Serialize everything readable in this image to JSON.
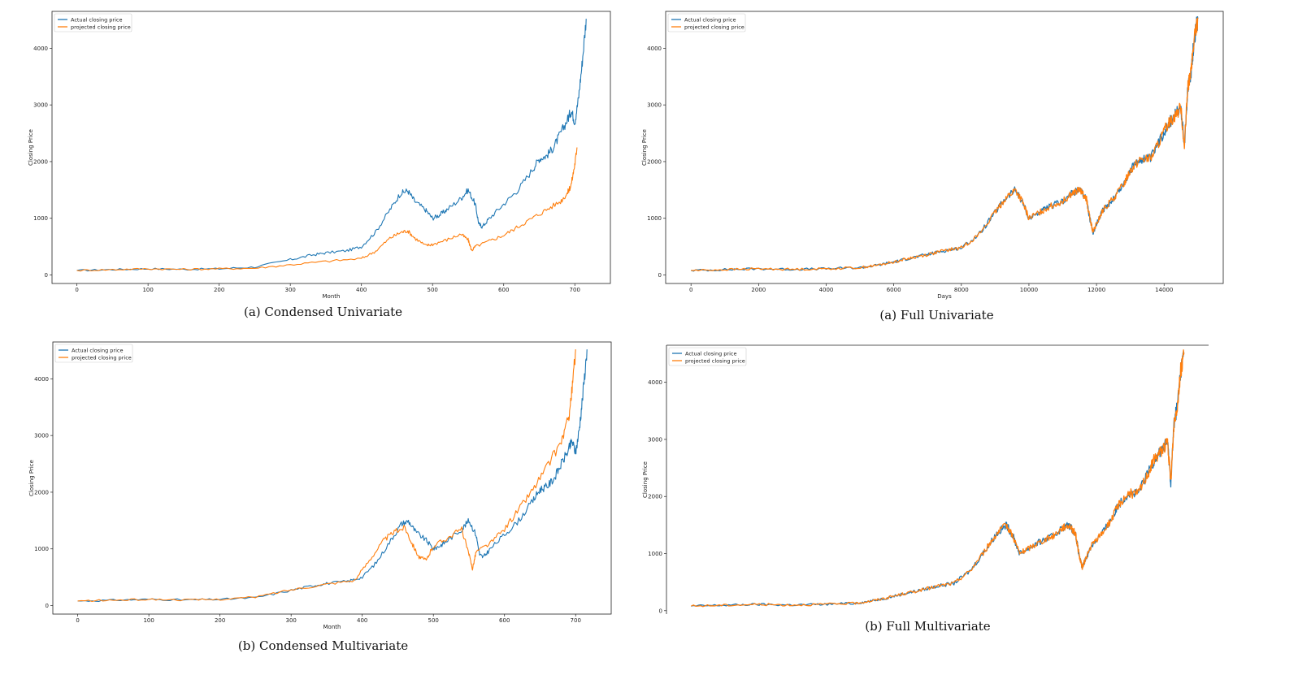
{
  "series_colors": {
    "actual": "#1f77b4",
    "projected": "#ff7f0e"
  },
  "legend": {
    "actual": "Actual closing price",
    "projected": "projected closing price"
  },
  "chart_data": [
    {
      "id": "condensed-univariate",
      "type": "line",
      "caption": "(a) Condensed Univariate",
      "xlabel": "Month",
      "ylabel": "Closing Price",
      "xlim": [
        -35,
        750
      ],
      "ylim": [
        -150,
        4650
      ],
      "xticks": [
        0,
        100,
        200,
        300,
        400,
        500,
        600,
        700
      ],
      "yticks": [
        0,
        1000,
        2000,
        3000,
        4000
      ],
      "legend_position": "top-left",
      "series": [
        {
          "name": "Actual closing price",
          "x": [
            0,
            50,
            100,
            150,
            200,
            250,
            300,
            330,
            350,
            380,
            400,
            420,
            440,
            455,
            465,
            475,
            490,
            500,
            510,
            520,
            540,
            550,
            560,
            565,
            570,
            580,
            600,
            620,
            640,
            650,
            660,
            670,
            680,
            690,
            695,
            700,
            705,
            710,
            716
          ],
          "y": [
            80,
            95,
            110,
            100,
            110,
            140,
            270,
            350,
            390,
            430,
            500,
            760,
            1150,
            1440,
            1490,
            1300,
            1150,
            1000,
            1060,
            1150,
            1350,
            1500,
            1250,
            900,
            850,
            1000,
            1250,
            1500,
            1850,
            2050,
            2100,
            2250,
            2500,
            2750,
            2900,
            2700,
            3100,
            3700,
            4520
          ]
        },
        {
          "name": "projected closing price",
          "x": [
            0,
            50,
            100,
            150,
            200,
            250,
            300,
            350,
            400,
            420,
            440,
            455,
            465,
            475,
            490,
            500,
            520,
            540,
            550,
            555,
            560,
            580,
            600,
            620,
            640,
            660,
            680,
            690,
            695,
            700,
            703
          ],
          "y": [
            80,
            95,
            110,
            100,
            110,
            120,
            180,
            240,
            290,
            420,
            650,
            750,
            780,
            650,
            520,
            540,
            620,
            720,
            620,
            430,
            500,
            600,
            700,
            850,
            1000,
            1150,
            1300,
            1450,
            1600,
            1950,
            2250
          ]
        }
      ]
    },
    {
      "id": "full-univariate",
      "type": "line",
      "caption": "(a) Full Univariate",
      "xlabel": "Days",
      "ylabel": "Closing Price",
      "xlim": [
        -750,
        15750
      ],
      "ylim": [
        -150,
        4650
      ],
      "xticks": [
        0,
        2000,
        4000,
        6000,
        8000,
        10000,
        12000,
        14000
      ],
      "yticks": [
        0,
        1000,
        2000,
        3000,
        4000
      ],
      "legend_position": "top-left",
      "series": [
        {
          "name": "Actual closing price",
          "x": [
            0,
            1000,
            2000,
            3000,
            4000,
            5000,
            5500,
            6000,
            6500,
            7000,
            7500,
            8000,
            8500,
            9000,
            9300,
            9600,
            9800,
            10000,
            10300,
            10600,
            11000,
            11300,
            11500,
            11700,
            11800,
            11900,
            12000,
            12200,
            12500,
            12800,
            13000,
            13300,
            13600,
            13900,
            14100,
            14300,
            14500,
            14600,
            14700,
            14800,
            14900,
            15000
          ],
          "y": [
            80,
            95,
            110,
            100,
            110,
            130,
            170,
            230,
            300,
            360,
            430,
            480,
            700,
            1100,
            1350,
            1500,
            1300,
            1000,
            1100,
            1200,
            1300,
            1450,
            1500,
            1350,
            1000,
            750,
            900,
            1150,
            1350,
            1600,
            1850,
            2050,
            2050,
            2400,
            2650,
            2800,
            2950,
            2250,
            3300,
            3600,
            4200,
            4520
          ]
        },
        {
          "name": "projected closing price",
          "x": [
            0,
            1000,
            2000,
            3000,
            4000,
            5000,
            5500,
            6000,
            6500,
            7000,
            7500,
            8000,
            8500,
            9000,
            9300,
            9600,
            9800,
            10000,
            10300,
            10600,
            11000,
            11300,
            11500,
            11700,
            11800,
            11900,
            12000,
            12200,
            12500,
            12800,
            13000,
            13300,
            13600,
            13900,
            14100,
            14300,
            14500,
            14600,
            14700,
            14800,
            14900,
            15000
          ],
          "y": [
            80,
            95,
            110,
            100,
            110,
            130,
            170,
            230,
            300,
            360,
            430,
            480,
            700,
            1100,
            1350,
            1500,
            1300,
            1000,
            1100,
            1200,
            1300,
            1450,
            1500,
            1350,
            1000,
            750,
            900,
            1150,
            1350,
            1600,
            1850,
            2050,
            2050,
            2400,
            2650,
            2800,
            2950,
            2250,
            3300,
            3600,
            4200,
            4520
          ]
        }
      ]
    },
    {
      "id": "condensed-multivariate",
      "type": "line",
      "caption": "(b) Condensed Multivariate",
      "xlabel": "Month",
      "ylabel": "Closing Price",
      "xlim": [
        -35,
        750
      ],
      "ylim": [
        -150,
        4650
      ],
      "xticks": [
        0,
        100,
        200,
        300,
        400,
        500,
        600,
        700
      ],
      "yticks": [
        0,
        1000,
        2000,
        3000,
        4000
      ],
      "legend_position": "top-left",
      "series": [
        {
          "name": "Actual closing price",
          "x": [
            0,
            50,
            100,
            150,
            200,
            250,
            300,
            330,
            350,
            380,
            400,
            420,
            440,
            455,
            465,
            475,
            490,
            500,
            510,
            520,
            540,
            550,
            560,
            565,
            570,
            580,
            600,
            620,
            640,
            650,
            660,
            670,
            680,
            690,
            695,
            700,
            705,
            710,
            716
          ],
          "y": [
            80,
            95,
            110,
            100,
            110,
            140,
            270,
            350,
            390,
            430,
            500,
            760,
            1150,
            1440,
            1490,
            1300,
            1150,
            1000,
            1060,
            1150,
            1350,
            1500,
            1250,
            900,
            850,
            1000,
            1250,
            1500,
            1850,
            2050,
            2100,
            2250,
            2500,
            2750,
            2900,
            2700,
            3100,
            3700,
            4520
          ]
        },
        {
          "name": "projected closing price",
          "x": [
            0,
            50,
            100,
            150,
            200,
            250,
            300,
            350,
            390,
            410,
            430,
            445,
            460,
            470,
            480,
            490,
            500,
            520,
            540,
            550,
            555,
            560,
            580,
            600,
            620,
            640,
            660,
            680,
            690,
            695,
            700
          ],
          "y": [
            80,
            95,
            110,
            100,
            110,
            150,
            280,
            380,
            450,
            800,
            1150,
            1300,
            1380,
            1100,
            850,
            800,
            1050,
            1200,
            1350,
            900,
            650,
            950,
            1100,
            1350,
            1700,
            2050,
            2450,
            2900,
            3300,
            3800,
            4520
          ]
        }
      ]
    },
    {
      "id": "full-multivariate",
      "type": "line",
      "caption": "(b) Full Multivariate",
      "xlabel": "",
      "ylabel": "Closing Price",
      "xlim": [
        -750,
        15750
      ],
      "ylim": [
        -60,
        4650
      ],
      "xticks": [],
      "yticks": [
        0,
        1000,
        2000,
        3000,
        4000
      ],
      "legend_position": "top-left",
      "series": [
        {
          "name": "Actual closing price",
          "x": [
            0,
            1000,
            2000,
            3000,
            4000,
            5000,
            5500,
            6000,
            6500,
            7000,
            7500,
            8000,
            8500,
            9000,
            9300,
            9600,
            9800,
            10000,
            10300,
            10600,
            11000,
            11300,
            11500,
            11700,
            11800,
            11900,
            12000,
            12200,
            12500,
            12800,
            13000,
            13300,
            13600,
            13900,
            14100,
            14300,
            14500,
            14600,
            14700,
            14800,
            14900,
            15000
          ],
          "y": [
            80,
            95,
            110,
            100,
            110,
            130,
            170,
            230,
            300,
            360,
            430,
            480,
            700,
            1100,
            1350,
            1500,
            1300,
            1000,
            1100,
            1200,
            1300,
            1450,
            1500,
            1350,
            1000,
            750,
            900,
            1150,
            1350,
            1600,
            1850,
            2050,
            2050,
            2400,
            2650,
            2800,
            2950,
            2250,
            3300,
            3600,
            4200,
            4520
          ]
        },
        {
          "name": "projected closing price",
          "x": [
            0,
            1000,
            2000,
            3000,
            4000,
            5000,
            5500,
            6000,
            6500,
            7000,
            7500,
            8000,
            8500,
            9000,
            9300,
            9600,
            9800,
            10000,
            10300,
            10600,
            11000,
            11300,
            11500,
            11700,
            11800,
            11900,
            12000,
            12200,
            12500,
            12800,
            13000,
            13300,
            13600,
            13900,
            14100,
            14300,
            14500,
            14600,
            14700,
            14800,
            14900,
            15000
          ],
          "y": [
            80,
            95,
            110,
            100,
            110,
            130,
            170,
            230,
            300,
            360,
            430,
            480,
            700,
            1100,
            1350,
            1500,
            1300,
            1000,
            1100,
            1200,
            1300,
            1450,
            1500,
            1350,
            1000,
            750,
            900,
            1150,
            1350,
            1600,
            1850,
            2050,
            2050,
            2400,
            2650,
            2800,
            2950,
            2250,
            3300,
            3600,
            4200,
            4520
          ]
        }
      ]
    }
  ]
}
